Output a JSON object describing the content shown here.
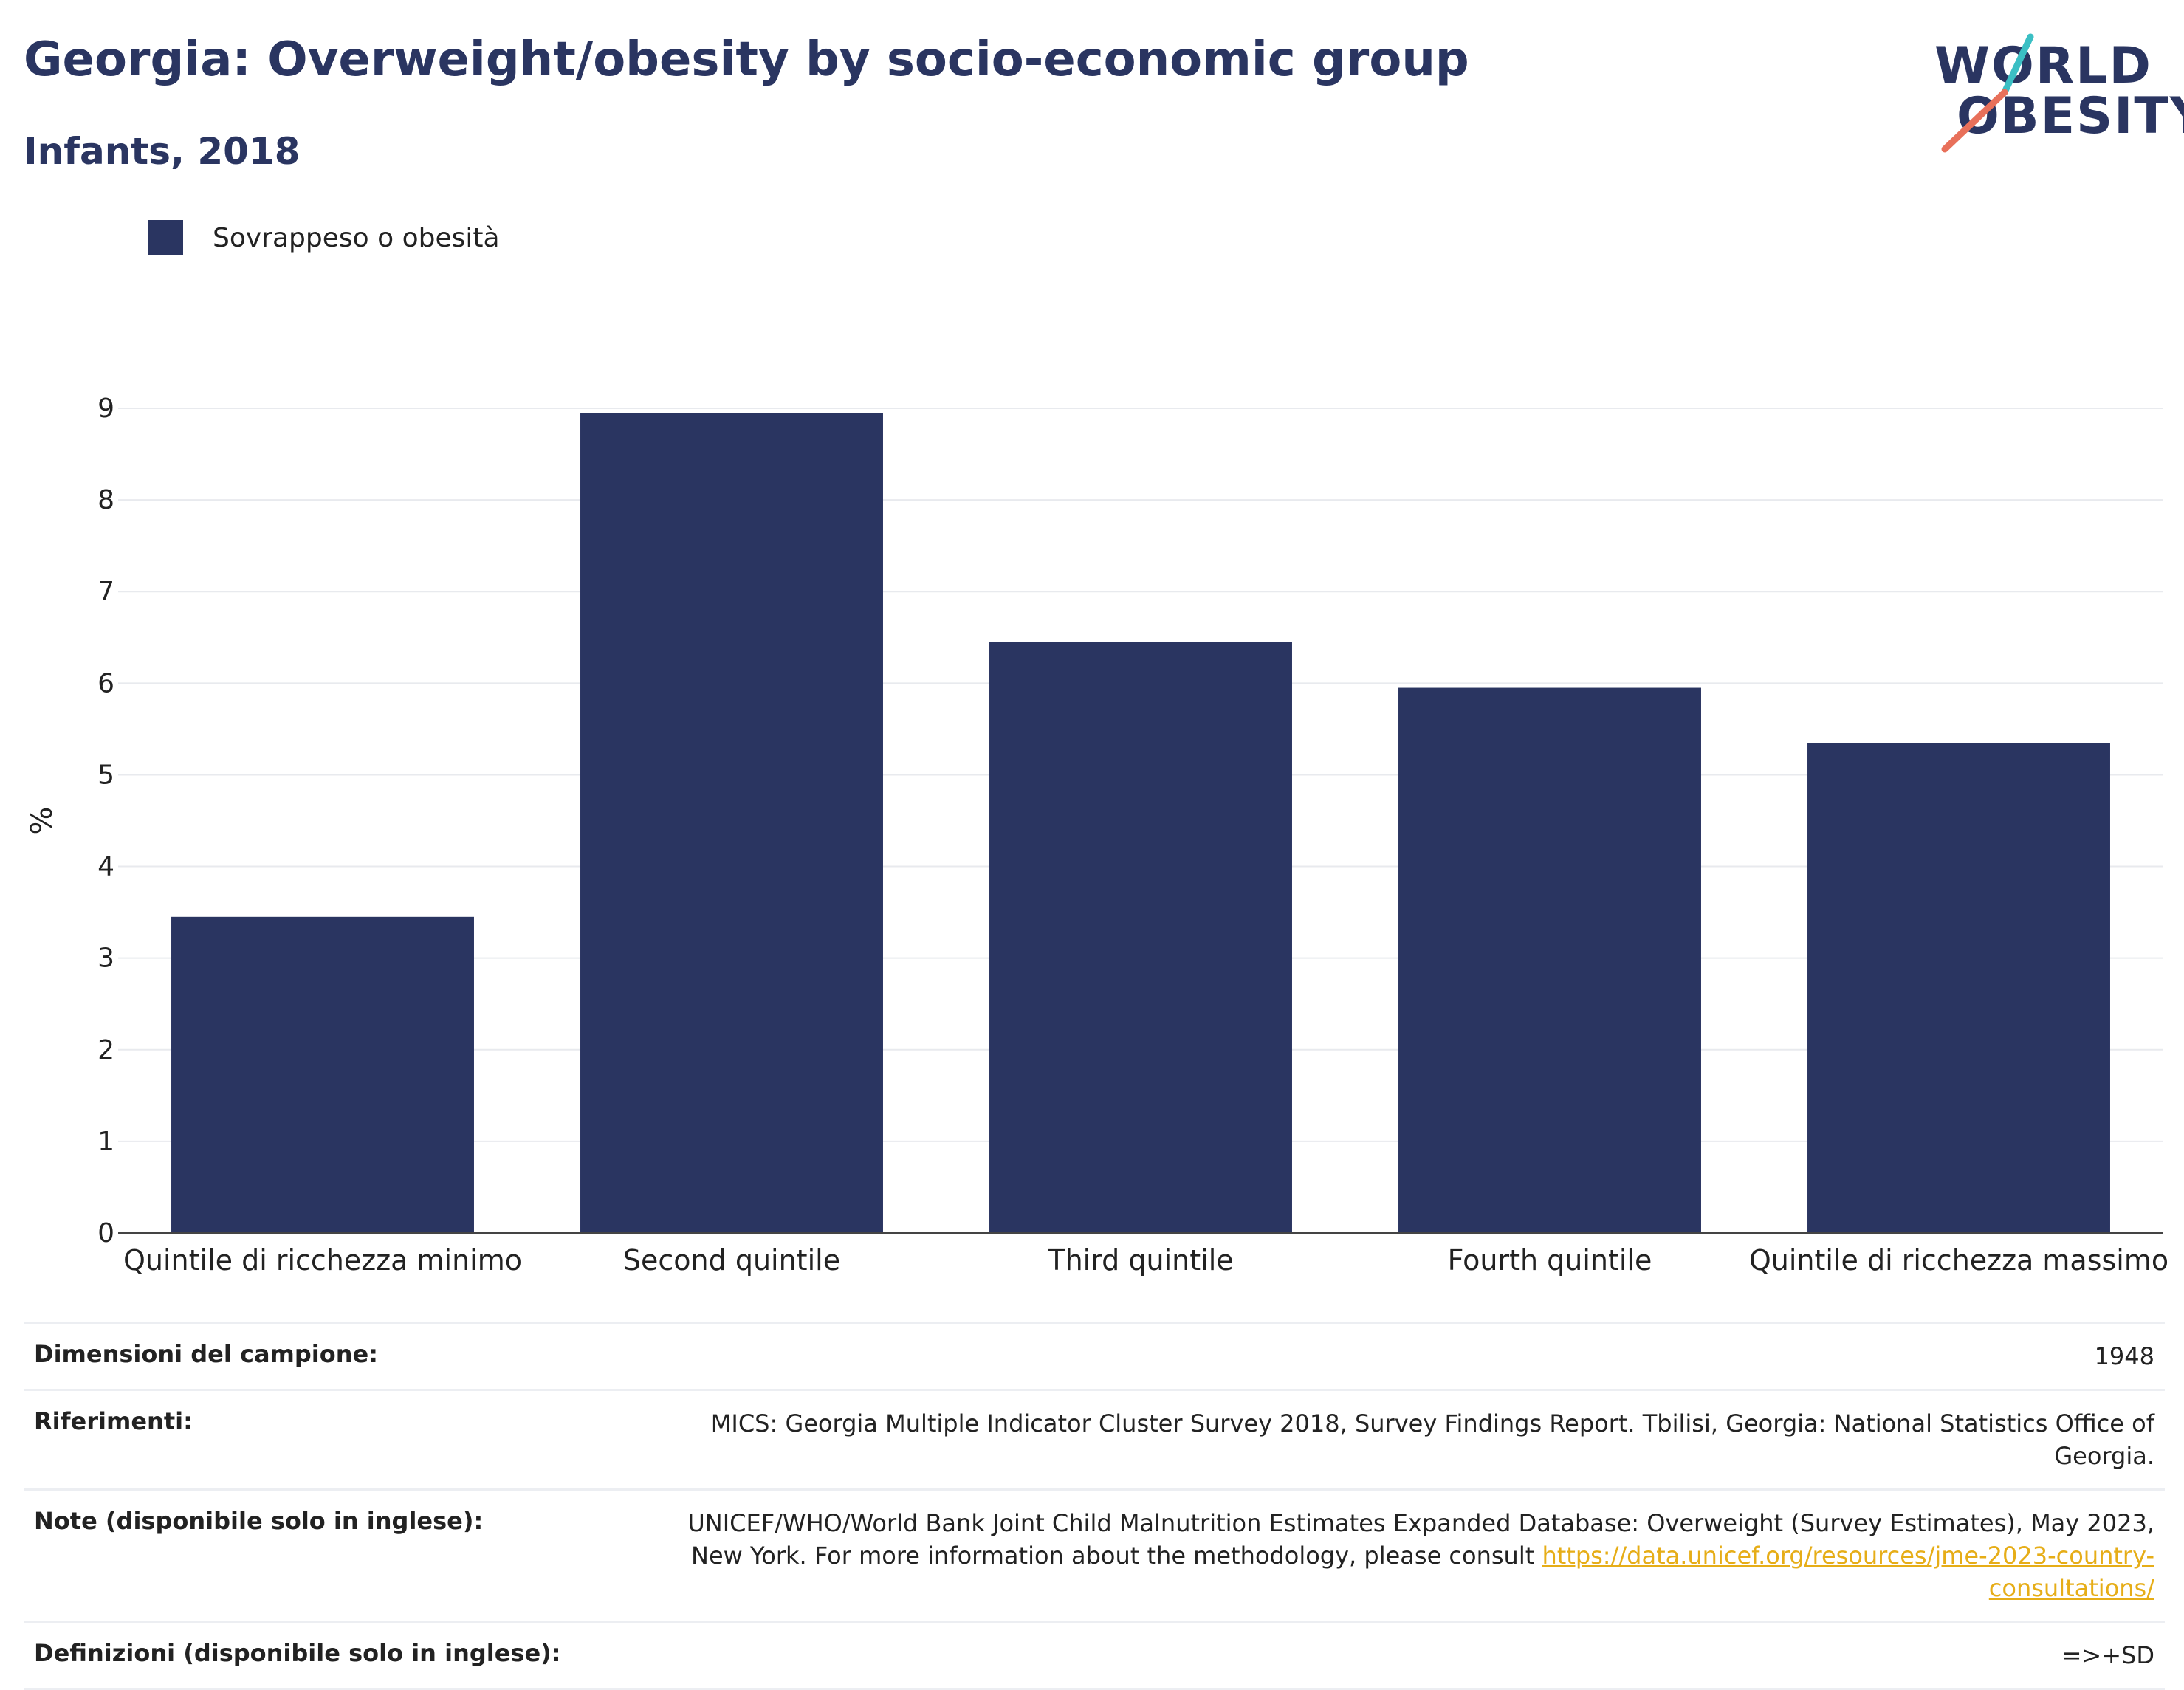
{
  "header": {
    "title": "Georgia: Overweight/obesity by socio-economic group",
    "subtitle": "Infants, 2018"
  },
  "logo": {
    "line1": "WORLD",
    "line2": "OBESITY"
  },
  "chart_data": {
    "type": "bar",
    "categories": [
      "Quintile di ricchezza minimo",
      "Second quintile",
      "Third quintile",
      "Fourth quintile",
      "Quintile di ricchezza massimo"
    ],
    "series": [
      {
        "name": "Sovrappeso o obesità",
        "values": [
          3.45,
          8.95,
          6.45,
          5.95,
          5.35
        ],
        "color": "#2a3561"
      }
    ],
    "ylabel": "%",
    "ylim": [
      0,
      9
    ],
    "yticks": [
      0,
      1,
      2,
      3,
      4,
      5,
      6,
      7,
      8,
      9
    ],
    "grid": true,
    "legend": "top-left"
  },
  "footer": {
    "rows": [
      {
        "key": "Dimensioni del campione:",
        "value": "1948"
      },
      {
        "key": "Riferimenti:",
        "value": "MICS: Georgia Multiple Indicator Cluster Survey 2018, Survey Findings Report. Tbilisi, Georgia: National Statistics Office of Georgia."
      },
      {
        "key": "Note (disponibile solo in inglese):",
        "value": "UNICEF/WHO/World Bank Joint Child Malnutrition Estimates Expanded Database: Overweight (Survey Estimates), May 2023, New York. For more information about the methodology, please consult ",
        "link": "https://data.unicef.org/resources/jme-2023-country-consultations/"
      },
      {
        "key": "Definizioni (disponibile solo in inglese):",
        "value": "=>+SD"
      }
    ]
  }
}
